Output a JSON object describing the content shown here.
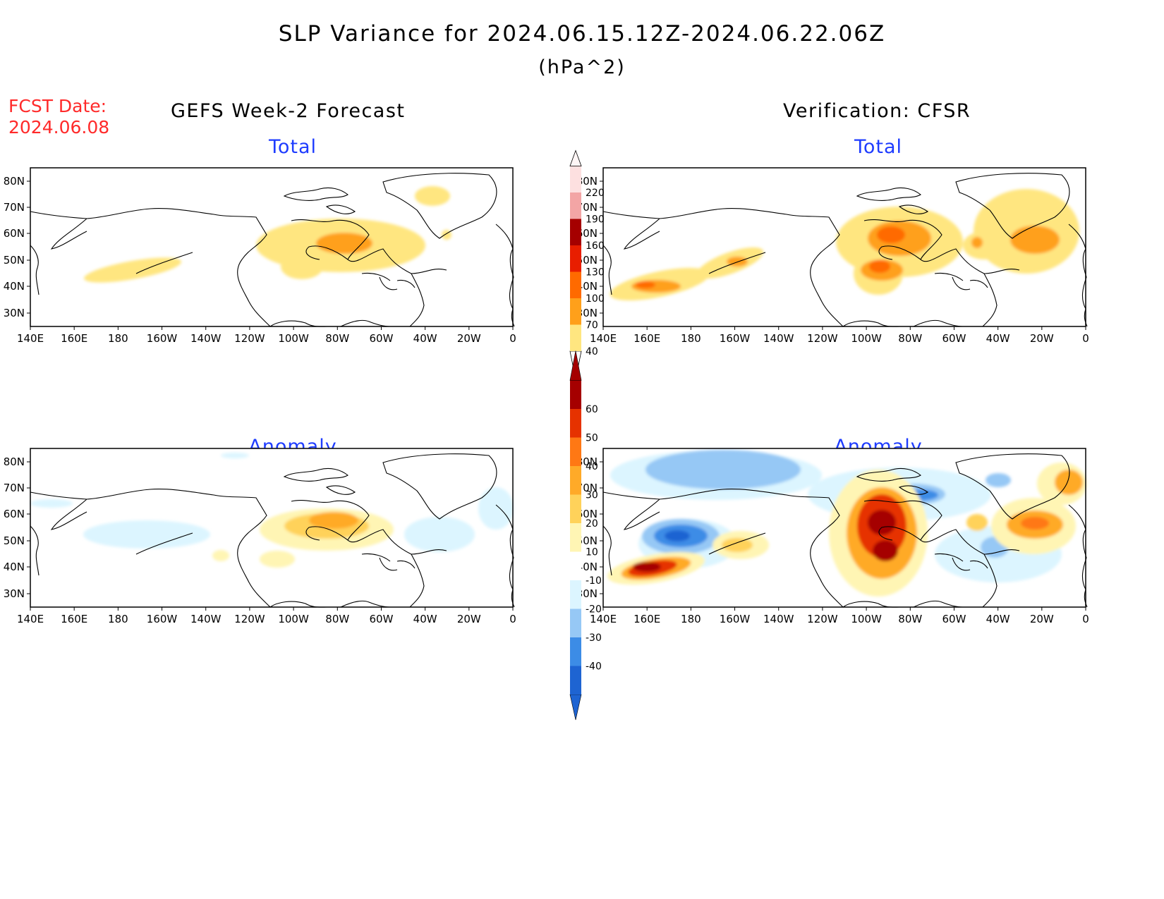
{
  "header": {
    "title": "SLP Variance for 2024.06.15.12Z-2024.06.22.06Z",
    "units": "(hPa^2)",
    "fcst_label": "FCST Date:",
    "fcst_date": "2024.06.08",
    "left_column": "GEFS Week-2 Forecast",
    "right_column": "Verification: CFSR"
  },
  "panels": {
    "forecast_total": {
      "title": "Total"
    },
    "verification_total": {
      "title": "Total"
    },
    "forecast_anomaly": {
      "title": "Anomaly"
    },
    "verification_anomaly": {
      "title": "Anomaly"
    }
  },
  "axes": {
    "lon_labels": [
      "140E",
      "160E",
      "180",
      "160W",
      "140W",
      "120W",
      "100W",
      "80W",
      "60W",
      "40W",
      "20W",
      "0"
    ],
    "lat_labels": [
      "80N",
      "70N",
      "60N",
      "50N",
      "40N",
      "30N"
    ]
  },
  "colorbar_total": {
    "labels": [
      "40",
      "70",
      "100",
      "130",
      "160",
      "190",
      "220"
    ],
    "colors": [
      "#ffe680",
      "#ffa01a",
      "#ff6a00",
      "#e81e00",
      "#a50000",
      "#f3a5a5",
      "#fde0e0"
    ]
  },
  "colorbar_anomaly": {
    "labels": [
      "-40",
      "-30",
      "-20",
      "-10",
      "10",
      "20",
      "30",
      "40",
      "50",
      "60"
    ],
    "colors_neg": [
      "#1e64d2",
      "#3c8ce6",
      "#96c8f5",
      "#dcf5ff"
    ],
    "colors_pos": [
      "#fff5b4",
      "#ffd25a",
      "#ffaa28",
      "#ff7814",
      "#e63200",
      "#a50000"
    ]
  },
  "legend": {
    "total": [
      40,
      70,
      100,
      130,
      160,
      190,
      220
    ],
    "anomaly": [
      -40,
      -30,
      -20,
      -10,
      10,
      20,
      30,
      40,
      50,
      60
    ]
  }
}
